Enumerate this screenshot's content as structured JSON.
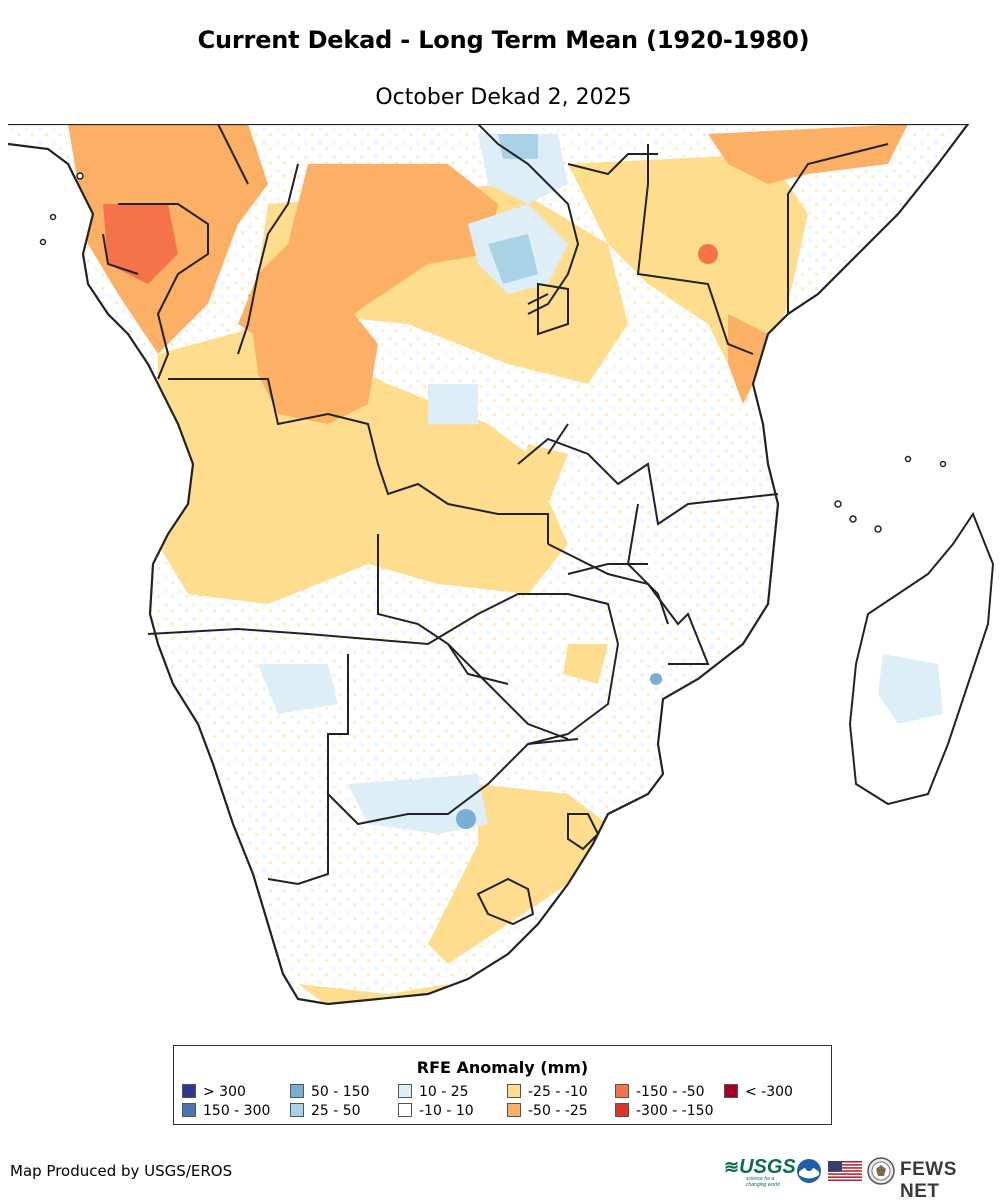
{
  "header": {
    "title": "Current Dekad - Long Term Mean (1920-1980)",
    "subtitle": "October Dekad 2, 2025"
  },
  "legend": {
    "title": "RFE Anomaly (mm)",
    "items": [
      {
        "label": "> 300",
        "color": "#2b3a8f"
      },
      {
        "label": "150 - 300",
        "color": "#4a74b4"
      },
      {
        "label": "50 - 150",
        "color": "#79aed6"
      },
      {
        "label": "25 - 50",
        "color": "#a9d2e6"
      },
      {
        "label": "10 - 25",
        "color": "#ddeef7"
      },
      {
        "label": "-10 - 10",
        "color": "#ffffff"
      },
      {
        "label": "-25 - -10",
        "color": "#fedd8e"
      },
      {
        "label": "-50 - -25",
        "color": "#fbb065"
      },
      {
        "label": "-150 - -50",
        "color": "#f4734a"
      },
      {
        "label": "-300 - -150",
        "color": "#d9362b"
      },
      {
        "label": "< -300",
        "color": "#a50026"
      }
    ]
  },
  "footer": {
    "credit": "Map Produced by USGS/EROS",
    "logos": {
      "usgs": "USGS",
      "usgs_tagline": "science for a changing world",
      "noaa": "noaa-logo-icon",
      "flag": "us-flag-icon",
      "seal": "state-dept-seal-icon",
      "fews": "FEWS NET"
    }
  }
}
